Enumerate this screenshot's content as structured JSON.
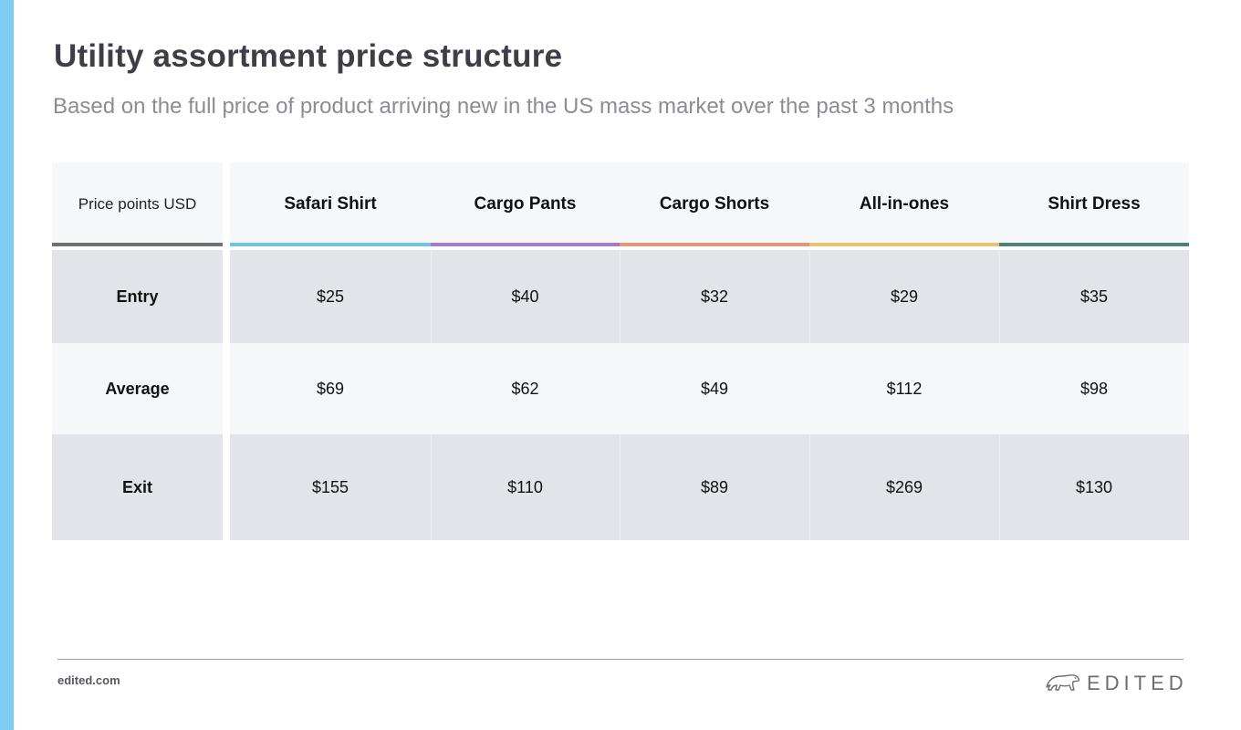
{
  "title": "Utility assortment price structure",
  "subtitle": "Based on the full price of product arriving new in the US mass market over the past 3 months",
  "table": {
    "corner_label": "Price points USD",
    "columns": [
      {
        "label": "Safari Shirt",
        "color": "#6ec3e4"
      },
      {
        "label": "Cargo Pants",
        "color": "#a47bc8"
      },
      {
        "label": "Cargo Shorts",
        "color": "#e3967a"
      },
      {
        "label": "All-in-ones",
        "color": "#e6c46a"
      },
      {
        "label": "Shirt Dress",
        "color": "#4e7f7a"
      }
    ],
    "corner_underline_color": "#707078",
    "rows": [
      {
        "label": "Entry",
        "values": [
          "$25",
          "$40",
          "$32",
          "$29",
          "$35"
        ]
      },
      {
        "label": "Average",
        "values": [
          "$69",
          "$62",
          "$49",
          "$112",
          "$98"
        ]
      },
      {
        "label": "Exit",
        "values": [
          "$155",
          "$110",
          "$89",
          "$269",
          "$130"
        ]
      }
    ]
  },
  "footer": {
    "url": "edited.com",
    "logo_text": "EDITED",
    "logo_icon": "polar-bear-icon"
  },
  "colors": {
    "accent_bar": "#7dcdf2"
  }
}
